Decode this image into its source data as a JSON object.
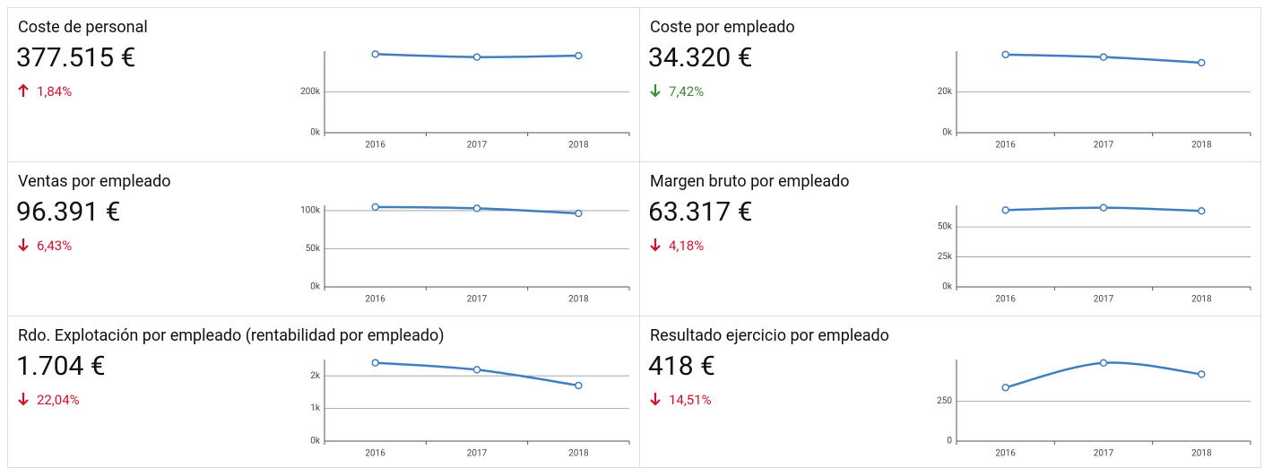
{
  "chart_data": [
    {
      "type": "line",
      "title": "Coste de personal",
      "kpi": "377.515 €",
      "change": "1,84%",
      "direction": "up",
      "color": "#3f7fbf",
      "categories": [
        "2016",
        "2017",
        "2018"
      ],
      "values": [
        385000,
        370700,
        377515
      ],
      "ylim": [
        0,
        400000
      ],
      "yticks": [
        {
          "value": 0,
          "label": "0k"
        },
        {
          "value": 200000,
          "label": "200k"
        }
      ],
      "grid": true
    },
    {
      "type": "line",
      "title": "Coste por empleado",
      "kpi": "34.320 €",
      "change": "7,42%",
      "direction": "down-good",
      "color": "#3f7fbf",
      "categories": [
        "2016",
        "2017",
        "2018"
      ],
      "values": [
        38300,
        37070,
        34320
      ],
      "ylim": [
        0,
        40000
      ],
      "yticks": [
        {
          "value": 0,
          "label": "0k"
        },
        {
          "value": 20000,
          "label": "20k"
        }
      ],
      "grid": true
    },
    {
      "type": "line",
      "title": "Ventas por empleado",
      "kpi": "96.391 €",
      "change": "6,43%",
      "direction": "down",
      "color": "#3f7fbf",
      "categories": [
        "2016",
        "2017",
        "2018"
      ],
      "values": [
        104800,
        103000,
        96391
      ],
      "ylim": [
        0,
        107000
      ],
      "yticks": [
        {
          "value": 0,
          "label": "0k"
        },
        {
          "value": 50000,
          "label": "50k"
        },
        {
          "value": 100000,
          "label": "100k"
        }
      ],
      "grid": true
    },
    {
      "type": "line",
      "title": "Margen bruto por empleado",
      "kpi": "63.317 €",
      "change": "4,18%",
      "direction": "down",
      "color": "#3f7fbf",
      "categories": [
        "2016",
        "2017",
        "2018"
      ],
      "values": [
        64000,
        66079,
        63317
      ],
      "ylim": [
        0,
        68000
      ],
      "yticks": [
        {
          "value": 0,
          "label": "0k"
        },
        {
          "value": 25000,
          "label": "25k"
        },
        {
          "value": 50000,
          "label": "50k"
        }
      ],
      "grid": true
    },
    {
      "type": "line",
      "title": "Rdo. Explotación por empleado (rentabilidad por empleado)",
      "kpi": "1.704 €",
      "change": "22,04%",
      "direction": "down",
      "color": "#3f7fbf",
      "categories": [
        "2016",
        "2017",
        "2018"
      ],
      "values": [
        2400,
        2186,
        1704
      ],
      "ylim": [
        0,
        2500
      ],
      "yticks": [
        {
          "value": 0,
          "label": "0k"
        },
        {
          "value": 1000,
          "label": "1k"
        },
        {
          "value": 2000,
          "label": "2k"
        }
      ],
      "grid": true
    },
    {
      "type": "line",
      "title": "Resultado ejercicio por empleado",
      "kpi": "418 €",
      "change": "14,51%",
      "direction": "down",
      "color": "#3f7fbf",
      "categories": [
        "2016",
        "2017",
        "2018"
      ],
      "values": [
        335,
        489,
        418
      ],
      "ylim": [
        0,
        510
      ],
      "yticks": [
        0,
        250
      ],
      "grid": true
    }
  ]
}
